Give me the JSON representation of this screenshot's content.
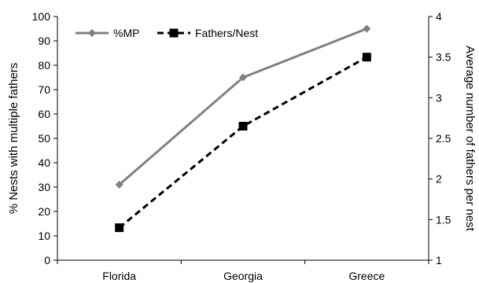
{
  "chart_data": {
    "type": "line",
    "categories": [
      "Florida",
      "Georgia",
      "Greece"
    ],
    "series": [
      {
        "name": "%MP",
        "axis": "left",
        "values": [
          31,
          75,
          95
        ],
        "color": "#808080",
        "marker": "diamond",
        "line_style": "solid"
      },
      {
        "name": "Fathers/Nest",
        "axis": "right",
        "values": [
          1.4,
          2.65,
          3.5
        ],
        "color": "#000000",
        "marker": "square",
        "line_style": "dashed"
      }
    ],
    "ylabel": "% Nests with multiple fathers",
    "y2label": "Average number of fathers per nest",
    "ylim": [
      0,
      100
    ],
    "y2lim": [
      1,
      4
    ],
    "yticks": [
      "0",
      "10",
      "20",
      "30",
      "40",
      "50",
      "60",
      "70",
      "80",
      "90",
      "100"
    ],
    "y2ticks": [
      "1",
      "1.5",
      "2",
      "2.5",
      "3",
      "3.5",
      "4"
    ],
    "legend_position": "top-left",
    "grid": false
  }
}
